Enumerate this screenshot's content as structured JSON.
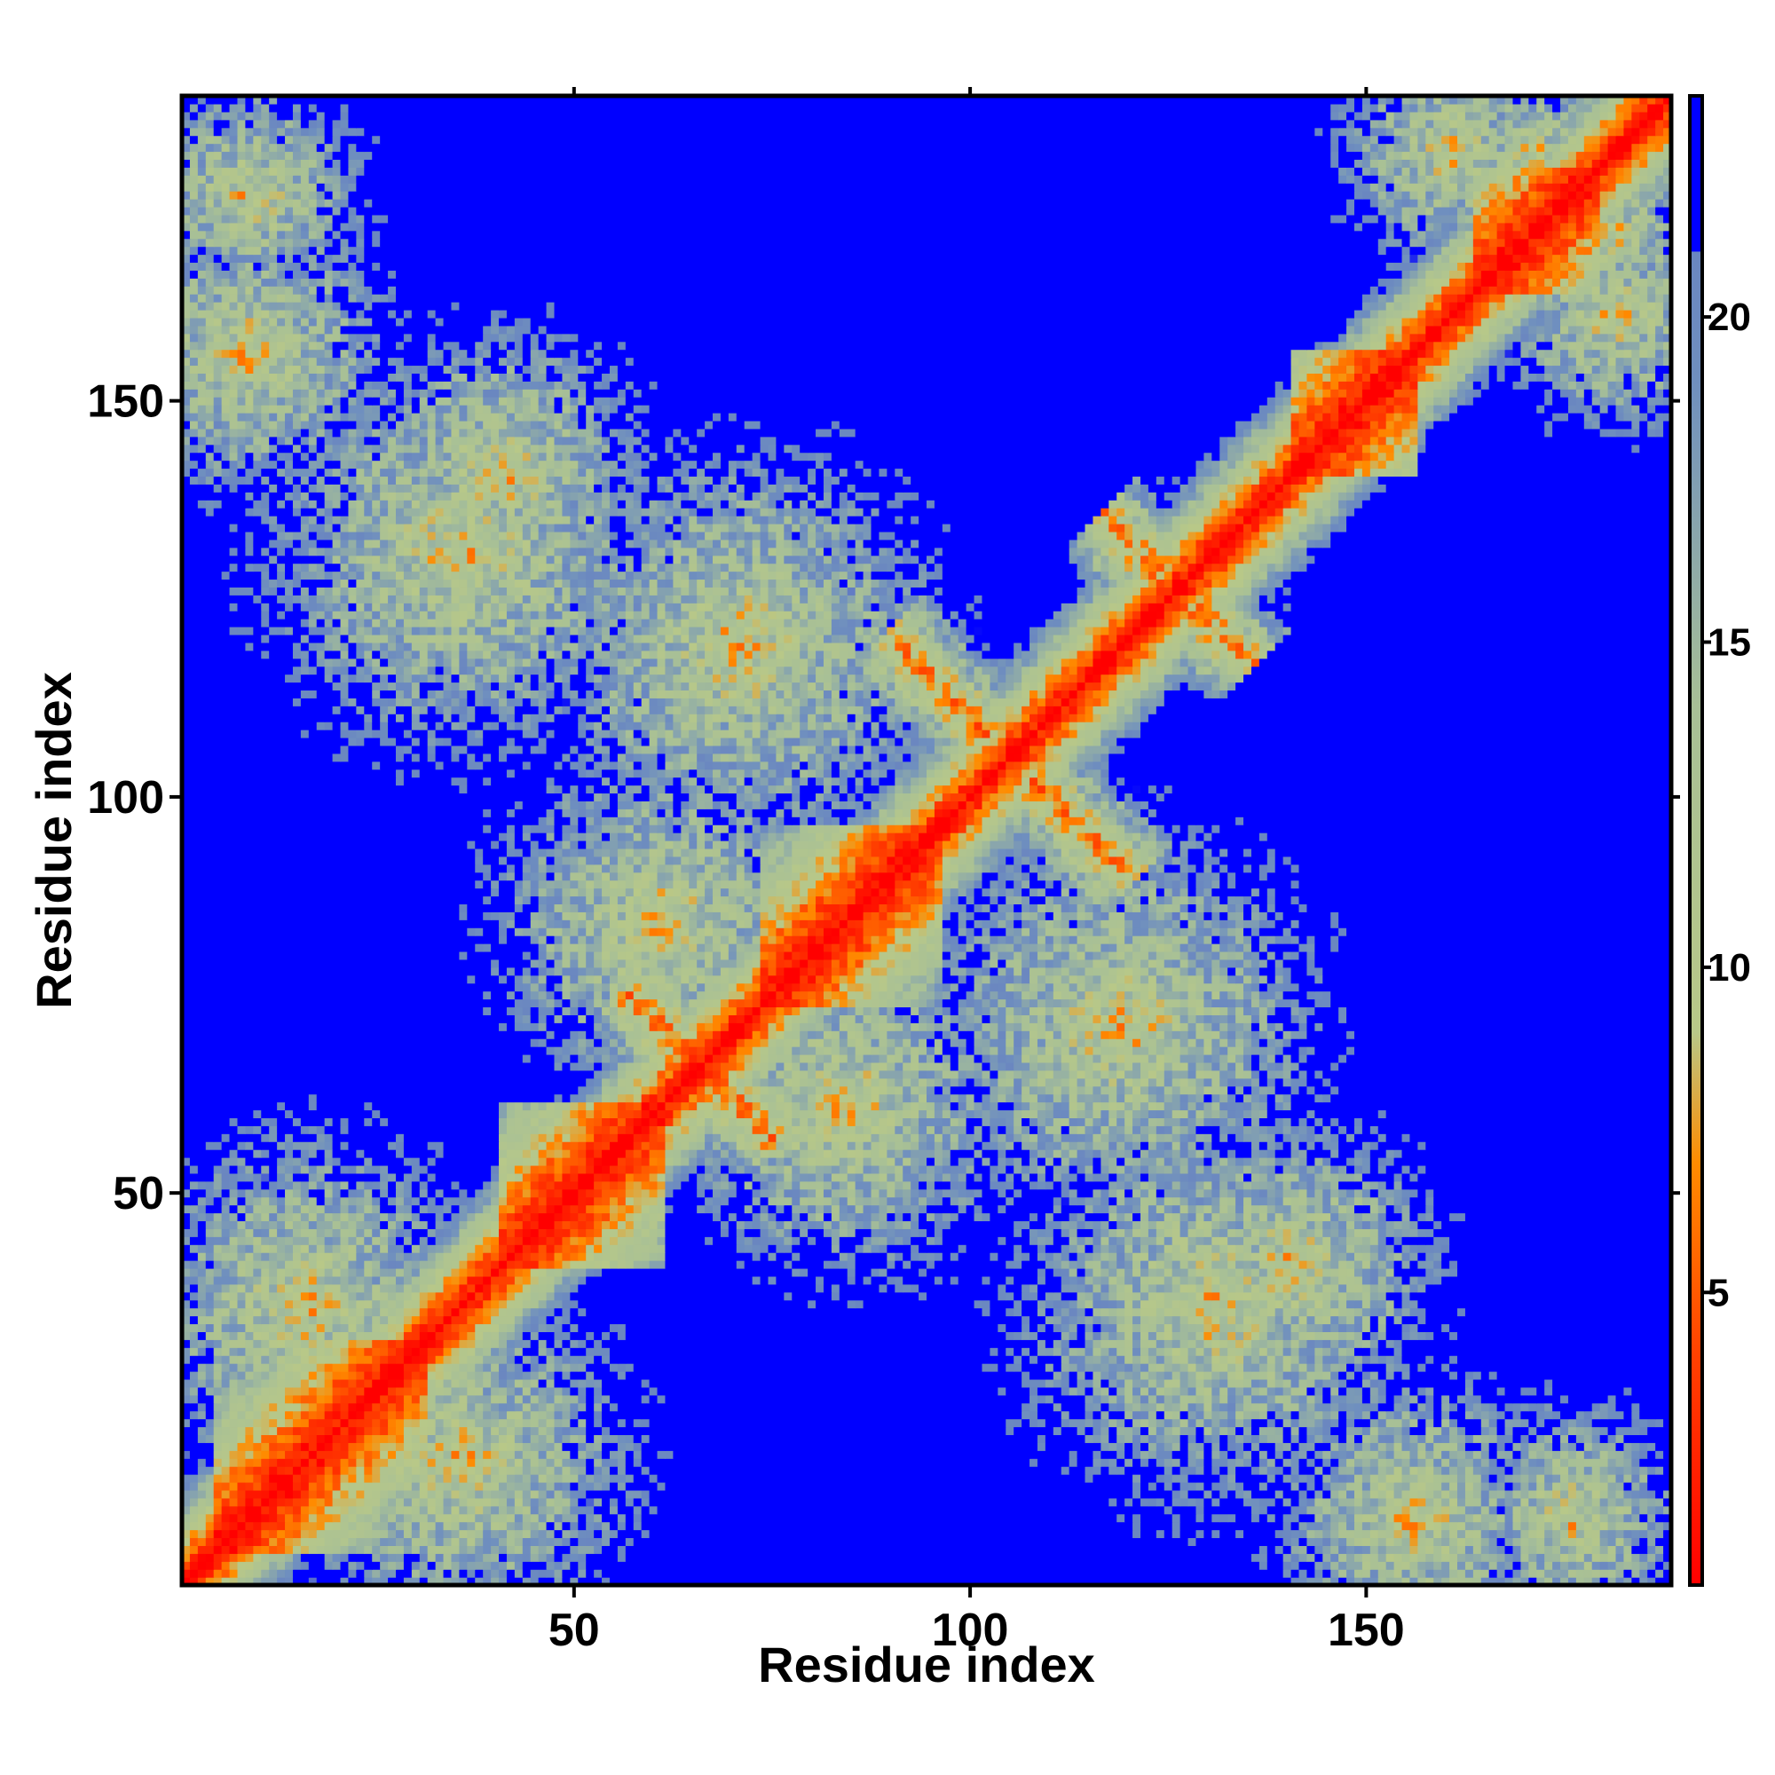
{
  "chart_data": {
    "type": "heatmap",
    "title": "",
    "xlabel": "Residue index",
    "ylabel": "Residue index",
    "n_residues": 188,
    "xlim": [
      1,
      188
    ],
    "ylim": [
      1,
      188
    ],
    "x_ticks": [
      50,
      100,
      150
    ],
    "y_ticks": [
      50,
      100,
      150
    ],
    "x_tick_labels": [
      "50",
      "100",
      "150"
    ],
    "y_tick_labels": [
      "50",
      "100",
      "150"
    ],
    "colorbar": {
      "range": [
        0.5,
        23.4
      ],
      "ticks": [
        5,
        10,
        15,
        20
      ],
      "tick_labels": [
        "5",
        "10",
        "15",
        "20"
      ],
      "stops": [
        {
          "value": 0.5,
          "color": "#ff0000"
        },
        {
          "value": 4.0,
          "color": "#ff4000"
        },
        {
          "value": 7.0,
          "color": "#ff8c00"
        },
        {
          "value": 9.0,
          "color": "#b8c888"
        },
        {
          "value": 14.0,
          "color": "#a8c096"
        },
        {
          "value": 19.0,
          "color": "#6f8fbf"
        },
        {
          "value": 21.0,
          "color": "#6a86c0"
        },
        {
          "value": 21.01,
          "color": "#0000ff"
        },
        {
          "value": 23.4,
          "color": "#0000ff"
        }
      ]
    },
    "description_matrix": "Symmetric residue-residue distance matrix (Angstrom); values above ~21 rendered as saturated blue.",
    "contact_features": [
      {
        "type": "diagonal"
      },
      {
        "type": "helix_band",
        "from": 4,
        "to": 30
      },
      {
        "type": "helix_band",
        "from": 40,
        "to": 60
      },
      {
        "type": "helix_band",
        "from": 73,
        "to": 95
      },
      {
        "type": "helix_band",
        "from": 140,
        "to": 155
      },
      {
        "type": "helix_band",
        "from": 163,
        "to": 178
      },
      {
        "type": "antiparallel",
        "center": [
          104,
          104
        ],
        "length": 16
      },
      {
        "type": "antiparallel",
        "center": [
          65,
          65
        ],
        "length": 10
      },
      {
        "type": "antiparallel",
        "center": [
          125,
          125
        ],
        "length": 10
      },
      {
        "type": "contact_cluster",
        "center": [
          35,
          15
        ],
        "radius": 12
      },
      {
        "type": "contact_cluster",
        "center": [
          130,
          35
        ],
        "radius": 14
      },
      {
        "type": "contact_cluster",
        "center": [
          155,
          8
        ],
        "radius": 10
      },
      {
        "type": "contact_cluster",
        "center": [
          175,
          8
        ],
        "radius": 8
      },
      {
        "type": "contact_cluster",
        "center": [
          40,
          140
        ],
        "radius": 10
      },
      {
        "type": "contact_cluster",
        "center": [
          118,
          70
        ],
        "radius": 14
      },
      {
        "type": "contact_cluster",
        "center": [
          83,
          60
        ],
        "radius": 12
      },
      {
        "type": "contact_cluster",
        "center": [
          180,
          160
        ],
        "radius": 8
      },
      {
        "type": "contact_cluster",
        "center": [
          170,
          180
        ],
        "radius": 6
      }
    ]
  }
}
